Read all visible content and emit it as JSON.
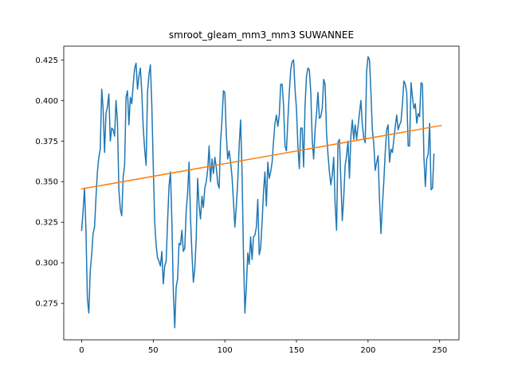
{
  "chart_data": {
    "type": "line",
    "title": "smroot_gleam_mm3_mm3 SUWANNEE",
    "xlabel": "",
    "ylabel": "",
    "xlim": [
      -12.5,
      263.5
    ],
    "ylim": [
      0.2525,
      0.4335
    ],
    "x_ticks": [
      0,
      50,
      100,
      150,
      200,
      250
    ],
    "y_ticks": [
      0.275,
      0.3,
      0.325,
      0.35,
      0.375,
      0.4,
      0.425
    ],
    "x_tick_labels": [
      "0",
      "50",
      "100",
      "150",
      "200",
      "250"
    ],
    "y_tick_labels": [
      "0.275",
      "0.300",
      "0.325",
      "0.350",
      "0.375",
      "0.400",
      "0.425"
    ],
    "grid": false,
    "series": [
      {
        "color": "#1f77b4",
        "x_start": 0,
        "x_step": 1,
        "values": [
          0.32,
          0.332,
          0.346,
          0.32,
          0.278,
          0.269,
          0.295,
          0.305,
          0.318,
          0.322,
          0.34,
          0.356,
          0.365,
          0.37,
          0.407,
          0.395,
          0.368,
          0.392,
          0.396,
          0.404,
          0.375,
          0.383,
          0.382,
          0.378,
          0.4,
          0.387,
          0.345,
          0.333,
          0.329,
          0.353,
          0.36,
          0.402,
          0.406,
          0.385,
          0.402,
          0.398,
          0.41,
          0.42,
          0.423,
          0.407,
          0.415,
          0.42,
          0.405,
          0.383,
          0.37,
          0.36,
          0.405,
          0.416,
          0.422,
          0.397,
          0.36,
          0.325,
          0.311,
          0.303,
          0.301,
          0.298,
          0.307,
          0.287,
          0.298,
          0.301,
          0.325,
          0.347,
          0.356,
          0.326,
          0.283,
          0.26,
          0.285,
          0.29,
          0.312,
          0.311,
          0.32,
          0.307,
          0.309,
          0.332,
          0.343,
          0.362,
          0.328,
          0.306,
          0.288,
          0.296,
          0.315,
          0.352,
          0.335,
          0.327,
          0.341,
          0.334,
          0.346,
          0.35,
          0.357,
          0.372,
          0.35,
          0.364,
          0.355,
          0.365,
          0.359,
          0.349,
          0.346,
          0.375,
          0.388,
          0.406,
          0.405,
          0.379,
          0.364,
          0.369,
          0.362,
          0.353,
          0.338,
          0.322,
          0.335,
          0.35,
          0.372,
          0.388,
          0.356,
          0.305,
          0.269,
          0.285,
          0.306,
          0.299,
          0.316,
          0.302,
          0.316,
          0.317,
          0.322,
          0.339,
          0.305,
          0.309,
          0.325,
          0.344,
          0.356,
          0.335,
          0.362,
          0.352,
          0.356,
          0.362,
          0.375,
          0.386,
          0.391,
          0.384,
          0.391,
          0.41,
          0.41,
          0.397,
          0.372,
          0.369,
          0.388,
          0.405,
          0.419,
          0.424,
          0.425,
          0.407,
          0.395,
          0.372,
          0.358,
          0.383,
          0.383,
          0.359,
          0.397,
          0.415,
          0.42,
          0.419,
          0.405,
          0.376,
          0.364,
          0.382,
          0.392,
          0.405,
          0.389,
          0.39,
          0.395,
          0.413,
          0.41,
          0.38,
          0.367,
          0.356,
          0.348,
          0.354,
          0.365,
          0.336,
          0.32,
          0.374,
          0.376,
          0.351,
          0.326,
          0.34,
          0.36,
          0.366,
          0.375,
          0.352,
          0.378,
          0.388,
          0.376,
          0.385,
          0.376,
          0.384,
          0.392,
          0.4,
          0.385,
          0.377,
          0.374,
          0.418,
          0.427,
          0.425,
          0.405,
          0.382,
          0.373,
          0.357,
          0.362,
          0.366,
          0.339,
          0.318,
          0.335,
          0.35,
          0.368,
          0.382,
          0.385,
          0.362,
          0.37,
          0.368,
          0.376,
          0.384,
          0.391,
          0.382,
          0.385,
          0.387,
          0.398,
          0.412,
          0.41,
          0.405,
          0.372,
          0.372,
          0.411,
          0.402,
          0.395,
          0.398,
          0.386,
          0.392,
          0.39,
          0.411,
          0.41,
          0.365,
          0.347,
          0.364,
          0.367,
          0.386,
          0.345,
          0.346,
          0.367
        ]
      },
      {
        "color": "#ff7f0e",
        "x": [
          0,
          251
        ],
        "values": [
          0.3455,
          0.3846
        ]
      }
    ]
  }
}
